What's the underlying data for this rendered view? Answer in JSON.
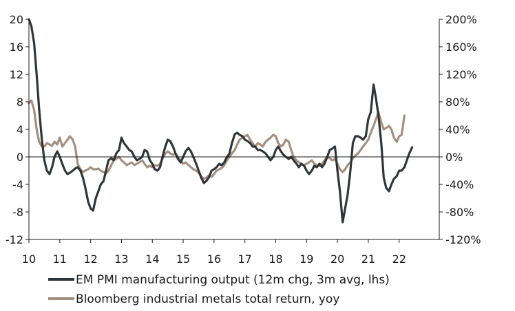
{
  "chart_data": {
    "type": "line",
    "title": "",
    "xlabel": "",
    "ylabel_left": "",
    "ylabel_right": "",
    "x_ticks": [
      "10",
      "11",
      "12",
      "13",
      "14",
      "15",
      "16",
      "17",
      "18",
      "19",
      "20",
      "21",
      "22"
    ],
    "x_range": [
      2010.0,
      2023.3
    ],
    "y_left": {
      "range": [
        -12,
        20
      ],
      "ticks": [
        -12,
        -8,
        -4,
        0,
        4,
        8,
        12,
        16,
        20
      ],
      "tick_labels": [
        "-12",
        "-8",
        "-4",
        "0",
        "4",
        "8",
        "12",
        "16",
        "20"
      ]
    },
    "y_right": {
      "range": [
        -120,
        200
      ],
      "ticks": [
        -120,
        -80,
        -40,
        0,
        40,
        80,
        120,
        160,
        200
      ],
      "tick_labels": [
        "-120%",
        "-80%",
        "-40%",
        "0%",
        "40%",
        "80%",
        "120%",
        "160%",
        "200%"
      ]
    },
    "grid": false,
    "legend_position": "bottom",
    "series": [
      {
        "name": "EM PMI manufacturing output (12m chg, 3m avg, lhs)",
        "axis": "left",
        "color": "#2f3538",
        "points": [
          [
            2010.0,
            20.0
          ],
          [
            2010.08,
            19.0
          ],
          [
            2010.17,
            16.5
          ],
          [
            2010.25,
            12.0
          ],
          [
            2010.33,
            7.0
          ],
          [
            2010.42,
            2.5
          ],
          [
            2010.5,
            -0.5
          ],
          [
            2010.58,
            -2.0
          ],
          [
            2010.67,
            -2.5
          ],
          [
            2010.75,
            -1.5
          ],
          [
            2010.83,
            0.0
          ],
          [
            2010.92,
            0.8
          ],
          [
            2011.0,
            0.0
          ],
          [
            2011.08,
            -1.0
          ],
          [
            2011.17,
            -2.0
          ],
          [
            2011.25,
            -2.5
          ],
          [
            2011.33,
            -2.3
          ],
          [
            2011.42,
            -2.0
          ],
          [
            2011.5,
            -1.7
          ],
          [
            2011.58,
            -1.5
          ],
          [
            2011.67,
            -2.0
          ],
          [
            2011.75,
            -3.0
          ],
          [
            2011.83,
            -4.5
          ],
          [
            2011.92,
            -6.5
          ],
          [
            2012.0,
            -7.5
          ],
          [
            2012.08,
            -7.8
          ],
          [
            2012.17,
            -6.0
          ],
          [
            2012.25,
            -5.0
          ],
          [
            2012.33,
            -4.0
          ],
          [
            2012.42,
            -3.5
          ],
          [
            2012.5,
            -2.0
          ],
          [
            2012.58,
            -0.5
          ],
          [
            2012.67,
            -0.2
          ],
          [
            2012.75,
            -0.5
          ],
          [
            2012.83,
            0.5
          ],
          [
            2012.92,
            1.0
          ],
          [
            2013.0,
            2.8
          ],
          [
            2013.08,
            2.0
          ],
          [
            2013.17,
            1.5
          ],
          [
            2013.25,
            1.0
          ],
          [
            2013.33,
            0.8
          ],
          [
            2013.42,
            0.0
          ],
          [
            2013.5,
            -0.5
          ],
          [
            2013.58,
            -0.3
          ],
          [
            2013.67,
            0.0
          ],
          [
            2013.75,
            1.0
          ],
          [
            2013.83,
            0.8
          ],
          [
            2013.92,
            -0.5
          ],
          [
            2014.0,
            -1.0
          ],
          [
            2014.08,
            -1.8
          ],
          [
            2014.17,
            -2.0
          ],
          [
            2014.25,
            -1.5
          ],
          [
            2014.33,
            0.0
          ],
          [
            2014.42,
            1.5
          ],
          [
            2014.5,
            2.5
          ],
          [
            2014.58,
            2.3
          ],
          [
            2014.67,
            1.5
          ],
          [
            2014.75,
            0.5
          ],
          [
            2014.83,
            -0.3
          ],
          [
            2014.92,
            -0.8
          ],
          [
            2015.0,
            0.0
          ],
          [
            2015.08,
            0.8
          ],
          [
            2015.17,
            1.3
          ],
          [
            2015.25,
            0.8
          ],
          [
            2015.33,
            0.0
          ],
          [
            2015.42,
            -1.0
          ],
          [
            2015.5,
            -2.0
          ],
          [
            2015.58,
            -3.0
          ],
          [
            2015.67,
            -3.8
          ],
          [
            2015.75,
            -3.5
          ],
          [
            2015.83,
            -3.0
          ],
          [
            2015.92,
            -2.0
          ],
          [
            2016.0,
            -1.8
          ],
          [
            2016.08,
            -1.5
          ],
          [
            2016.17,
            -1.0
          ],
          [
            2016.25,
            -1.2
          ],
          [
            2016.33,
            -0.8
          ],
          [
            2016.42,
            0.0
          ],
          [
            2016.5,
            0.5
          ],
          [
            2016.58,
            2.0
          ],
          [
            2016.67,
            3.3
          ],
          [
            2016.75,
            3.5
          ],
          [
            2016.83,
            3.2
          ],
          [
            2016.92,
            3.0
          ],
          [
            2017.0,
            2.5
          ],
          [
            2017.08,
            2.3
          ],
          [
            2017.17,
            2.0
          ],
          [
            2017.25,
            1.5
          ],
          [
            2017.33,
            1.5
          ],
          [
            2017.42,
            1.0
          ],
          [
            2017.5,
            1.0
          ],
          [
            2017.58,
            0.8
          ],
          [
            2017.67,
            0.5
          ],
          [
            2017.75,
            0.0
          ],
          [
            2017.83,
            -0.5
          ],
          [
            2017.92,
            0.0
          ],
          [
            2018.0,
            1.0
          ],
          [
            2018.08,
            1.5
          ],
          [
            2018.17,
            0.8
          ],
          [
            2018.25,
            0.3
          ],
          [
            2018.33,
            0.0
          ],
          [
            2018.42,
            -0.3
          ],
          [
            2018.5,
            0.0
          ],
          [
            2018.58,
            -0.5
          ],
          [
            2018.67,
            -1.0
          ],
          [
            2018.75,
            -1.5
          ],
          [
            2018.83,
            -1.0
          ],
          [
            2018.92,
            -1.3
          ],
          [
            2019.0,
            -2.0
          ],
          [
            2019.08,
            -2.5
          ],
          [
            2019.17,
            -2.0
          ],
          [
            2019.25,
            -1.3
          ],
          [
            2019.33,
            -1.5
          ],
          [
            2019.42,
            -1.0
          ],
          [
            2019.5,
            -1.5
          ],
          [
            2019.58,
            -1.0
          ],
          [
            2019.67,
            0.0
          ],
          [
            2019.75,
            1.0
          ],
          [
            2019.83,
            1.2
          ],
          [
            2019.92,
            1.5
          ],
          [
            2020.0,
            -2.0
          ],
          [
            2020.08,
            -5.0
          ],
          [
            2020.17,
            -9.5
          ],
          [
            2020.25,
            -7.5
          ],
          [
            2020.33,
            -5.5
          ],
          [
            2020.42,
            -2.0
          ],
          [
            2020.5,
            2.0
          ],
          [
            2020.58,
            3.0
          ],
          [
            2020.67,
            3.0
          ],
          [
            2020.75,
            2.8
          ],
          [
            2020.83,
            2.5
          ],
          [
            2020.92,
            3.0
          ],
          [
            2021.0,
            5.5
          ],
          [
            2021.08,
            6.5
          ],
          [
            2021.17,
            10.5
          ],
          [
            2021.25,
            8.5
          ],
          [
            2021.33,
            6.0
          ],
          [
            2021.42,
            2.0
          ],
          [
            2021.5,
            -3.0
          ],
          [
            2021.58,
            -4.5
          ],
          [
            2021.67,
            -5.0
          ],
          [
            2021.75,
            -4.0
          ],
          [
            2021.83,
            -3.2
          ],
          [
            2021.92,
            -2.8
          ],
          [
            2022.0,
            -2.0
          ],
          [
            2022.08,
            -2.0
          ],
          [
            2022.17,
            -1.5
          ],
          [
            2022.25,
            -0.5
          ],
          [
            2022.33,
            0.5
          ],
          [
            2022.42,
            1.4
          ]
        ]
      },
      {
        "name": "Bloomberg industrial metals total return, yoy",
        "axis": "right",
        "color": "#a38f7f",
        "points": [
          [
            2010.0,
            78
          ],
          [
            2010.08,
            82
          ],
          [
            2010.17,
            68
          ],
          [
            2010.25,
            40
          ],
          [
            2010.33,
            22
          ],
          [
            2010.42,
            15
          ],
          [
            2010.5,
            15
          ],
          [
            2010.58,
            20
          ],
          [
            2010.67,
            18
          ],
          [
            2010.75,
            16
          ],
          [
            2010.83,
            22
          ],
          [
            2010.92,
            18
          ],
          [
            2011.0,
            28
          ],
          [
            2011.08,
            15
          ],
          [
            2011.17,
            20
          ],
          [
            2011.25,
            25
          ],
          [
            2011.33,
            30
          ],
          [
            2011.42,
            25
          ],
          [
            2011.5,
            15
          ],
          [
            2011.58,
            -10
          ],
          [
            2011.67,
            -18
          ],
          [
            2011.75,
            -22
          ],
          [
            2011.83,
            -20
          ],
          [
            2011.92,
            -18
          ],
          [
            2012.0,
            -15
          ],
          [
            2012.08,
            -18
          ],
          [
            2012.17,
            -18
          ],
          [
            2012.25,
            -17
          ],
          [
            2012.33,
            -20
          ],
          [
            2012.42,
            -22
          ],
          [
            2012.5,
            -24
          ],
          [
            2012.58,
            -20
          ],
          [
            2012.67,
            -12
          ],
          [
            2012.75,
            -5
          ],
          [
            2012.83,
            -3
          ],
          [
            2012.92,
            0
          ],
          [
            2013.0,
            -5
          ],
          [
            2013.08,
            -8
          ],
          [
            2013.17,
            -12
          ],
          [
            2013.25,
            -10
          ],
          [
            2013.33,
            -8
          ],
          [
            2013.42,
            -12
          ],
          [
            2013.5,
            -10
          ],
          [
            2013.58,
            -8
          ],
          [
            2013.67,
            -5
          ],
          [
            2013.75,
            -10
          ],
          [
            2013.83,
            -15
          ],
          [
            2013.92,
            -13
          ],
          [
            2014.0,
            -15
          ],
          [
            2014.08,
            -12
          ],
          [
            2014.17,
            -13
          ],
          [
            2014.25,
            -10
          ],
          [
            2014.33,
            -3
          ],
          [
            2014.42,
            5
          ],
          [
            2014.5,
            8
          ],
          [
            2014.58,
            5
          ],
          [
            2014.67,
            3
          ],
          [
            2014.75,
            5
          ],
          [
            2014.83,
            0
          ],
          [
            2014.92,
            -5
          ],
          [
            2015.0,
            -10
          ],
          [
            2015.08,
            -8
          ],
          [
            2015.17,
            -12
          ],
          [
            2015.25,
            -15
          ],
          [
            2015.33,
            -18
          ],
          [
            2015.42,
            -20
          ],
          [
            2015.5,
            -23
          ],
          [
            2015.58,
            -28
          ],
          [
            2015.67,
            -32
          ],
          [
            2015.75,
            -30
          ],
          [
            2015.83,
            -27
          ],
          [
            2015.92,
            -29
          ],
          [
            2016.0,
            -25
          ],
          [
            2016.08,
            -20
          ],
          [
            2016.17,
            -18
          ],
          [
            2016.25,
            -16
          ],
          [
            2016.33,
            -12
          ],
          [
            2016.42,
            -5
          ],
          [
            2016.5,
            0
          ],
          [
            2016.58,
            5
          ],
          [
            2016.67,
            10
          ],
          [
            2016.75,
            18
          ],
          [
            2016.83,
            25
          ],
          [
            2016.92,
            28
          ],
          [
            2017.0,
            30
          ],
          [
            2017.08,
            32
          ],
          [
            2017.17,
            25
          ],
          [
            2017.25,
            20
          ],
          [
            2017.33,
            15
          ],
          [
            2017.42,
            20
          ],
          [
            2017.5,
            18
          ],
          [
            2017.58,
            15
          ],
          [
            2017.67,
            22
          ],
          [
            2017.75,
            25
          ],
          [
            2017.83,
            28
          ],
          [
            2017.92,
            32
          ],
          [
            2018.0,
            30
          ],
          [
            2018.08,
            20
          ],
          [
            2018.17,
            15
          ],
          [
            2018.25,
            18
          ],
          [
            2018.33,
            25
          ],
          [
            2018.42,
            22
          ],
          [
            2018.5,
            10
          ],
          [
            2018.58,
            0
          ],
          [
            2018.67,
            -5
          ],
          [
            2018.75,
            -8
          ],
          [
            2018.83,
            -10
          ],
          [
            2018.92,
            -12
          ],
          [
            2019.0,
            -10
          ],
          [
            2019.08,
            -8
          ],
          [
            2019.17,
            -5
          ],
          [
            2019.25,
            -10
          ],
          [
            2019.33,
            -12
          ],
          [
            2019.42,
            -13
          ],
          [
            2019.5,
            -10
          ],
          [
            2019.58,
            -5
          ],
          [
            2019.67,
            0
          ],
          [
            2019.75,
            -2
          ],
          [
            2019.83,
            -5
          ],
          [
            2019.92,
            -3
          ],
          [
            2020.0,
            -10
          ],
          [
            2020.08,
            -18
          ],
          [
            2020.17,
            -22
          ],
          [
            2020.25,
            -18
          ],
          [
            2020.33,
            -12
          ],
          [
            2020.42,
            -8
          ],
          [
            2020.5,
            -2
          ],
          [
            2020.58,
            2
          ],
          [
            2020.67,
            5
          ],
          [
            2020.75,
            10
          ],
          [
            2020.83,
            15
          ],
          [
            2020.92,
            20
          ],
          [
            2021.0,
            25
          ],
          [
            2021.08,
            35
          ],
          [
            2021.17,
            45
          ],
          [
            2021.25,
            55
          ],
          [
            2021.33,
            65
          ],
          [
            2021.42,
            50
          ],
          [
            2021.5,
            40
          ],
          [
            2021.58,
            42
          ],
          [
            2021.67,
            45
          ],
          [
            2021.75,
            40
          ],
          [
            2021.83,
            28
          ],
          [
            2021.92,
            22
          ],
          [
            2022.0,
            30
          ],
          [
            2022.08,
            32
          ],
          [
            2022.17,
            60
          ]
        ]
      }
    ]
  }
}
